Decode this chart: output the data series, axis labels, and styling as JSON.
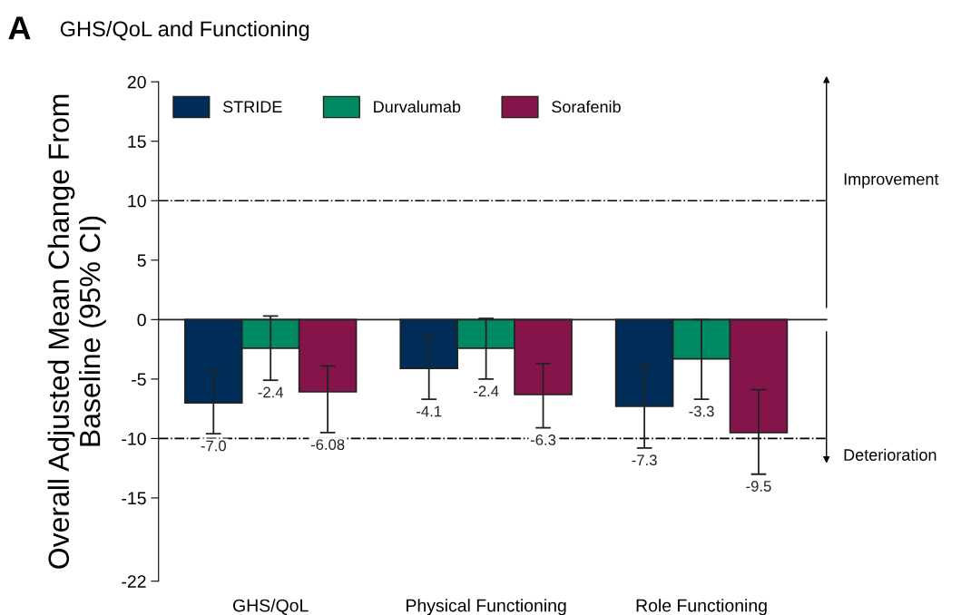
{
  "chart_data": {
    "type": "bar",
    "title": "GHS/QoL and Functioning",
    "ylabel": "Overall Adjusted Mean Change From\nBaseline (95% CI)",
    "categories": [
      "GHS/QoL",
      "Physical Functioning",
      "Role Functioning"
    ],
    "series": [
      {
        "name": "STRIDE",
        "color": "#002d57",
        "values": [
          -7.0,
          -4.1,
          -7.3
        ],
        "value_labels": [
          "-7.0",
          "-4.1",
          "-7.3"
        ],
        "errors": [
          [
            -9.6,
            -4.35
          ],
          [
            -6.7,
            -1.4
          ],
          [
            -10.8,
            -3.9
          ]
        ]
      },
      {
        "name": "Durvalumab",
        "color": "#008a63",
        "values": [
          -2.4,
          -2.4,
          -3.3
        ],
        "value_labels": [
          "-2.4",
          "-2.4",
          "-3.3"
        ],
        "errors": [
          [
            -5.1,
            0.3
          ],
          [
            -5.0,
            0.1
          ],
          [
            -6.7,
            0.0
          ]
        ]
      },
      {
        "name": "Sorafenib",
        "color": "#85144b",
        "values": [
          -6.08,
          -6.3,
          -9.5
        ],
        "value_labels": [
          "-6.08",
          "-6.3",
          "-9.5"
        ],
        "errors": [
          [
            -9.5,
            -3.9
          ],
          [
            -9.1,
            -3.7
          ],
          [
            -13.0,
            -5.9
          ]
        ]
      }
    ],
    "ylim": [
      -22,
      20
    ],
    "yticks": [
      20,
      15,
      10,
      5,
      0,
      -5,
      -10,
      -15,
      -22
    ],
    "ref_lines": [
      {
        "axis": "y",
        "value": 10,
        "line_style": "dashdot",
        "color": "#000000"
      },
      {
        "axis": "y",
        "value": -10,
        "line_style": "dashdot",
        "color": "#000000"
      }
    ],
    "annotations": [
      "A",
      "Improvement",
      "Deterioration"
    ],
    "legend": "top left",
    "grid": false
  }
}
